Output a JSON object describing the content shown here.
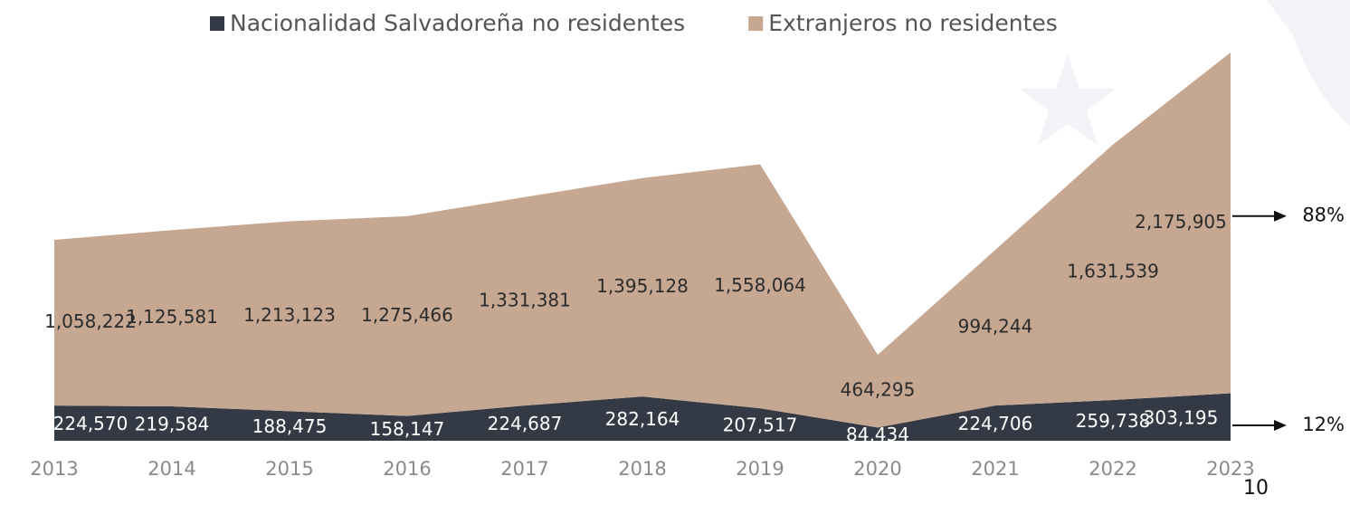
{
  "chart_data": {
    "type": "area",
    "stacked": true,
    "categories": [
      "2013",
      "2014",
      "2015",
      "2016",
      "2017",
      "2018",
      "2019",
      "2020",
      "2021",
      "2022",
      "2023"
    ],
    "series": [
      {
        "name": "Nacionalidad Salvadoreña no residentes",
        "color": "#343a45",
        "values": [
          224570,
          219584,
          188475,
          158147,
          224687,
          282164,
          207517,
          84434,
          224706,
          259738,
          303195
        ],
        "value_labels": [
          "224,570",
          "219,584",
          "188,475",
          "158,147",
          "224,687",
          "282,164",
          "207,517",
          "84,434",
          "224,706",
          "259,738",
          "303,195"
        ]
      },
      {
        "name": "Extranjeros no residentes",
        "color": "#c6a892",
        "values": [
          1058222,
          1125581,
          1213123,
          1275466,
          1331381,
          1395128,
          1558064,
          464295,
          994244,
          1631539,
          2175905
        ],
        "value_labels": [
          "1,058,222",
          "1,125,581",
          "1,213,123",
          "1,275,466",
          "1,331,381",
          "1,395,128",
          "1,558,064",
          "464,295",
          "994,244",
          "1,631,539",
          "2,175,905"
        ]
      }
    ],
    "annotations": [
      {
        "text": "88%",
        "series": 1
      },
      {
        "text": "12%",
        "series": 0
      }
    ],
    "legend": "top"
  },
  "page_number": "10"
}
